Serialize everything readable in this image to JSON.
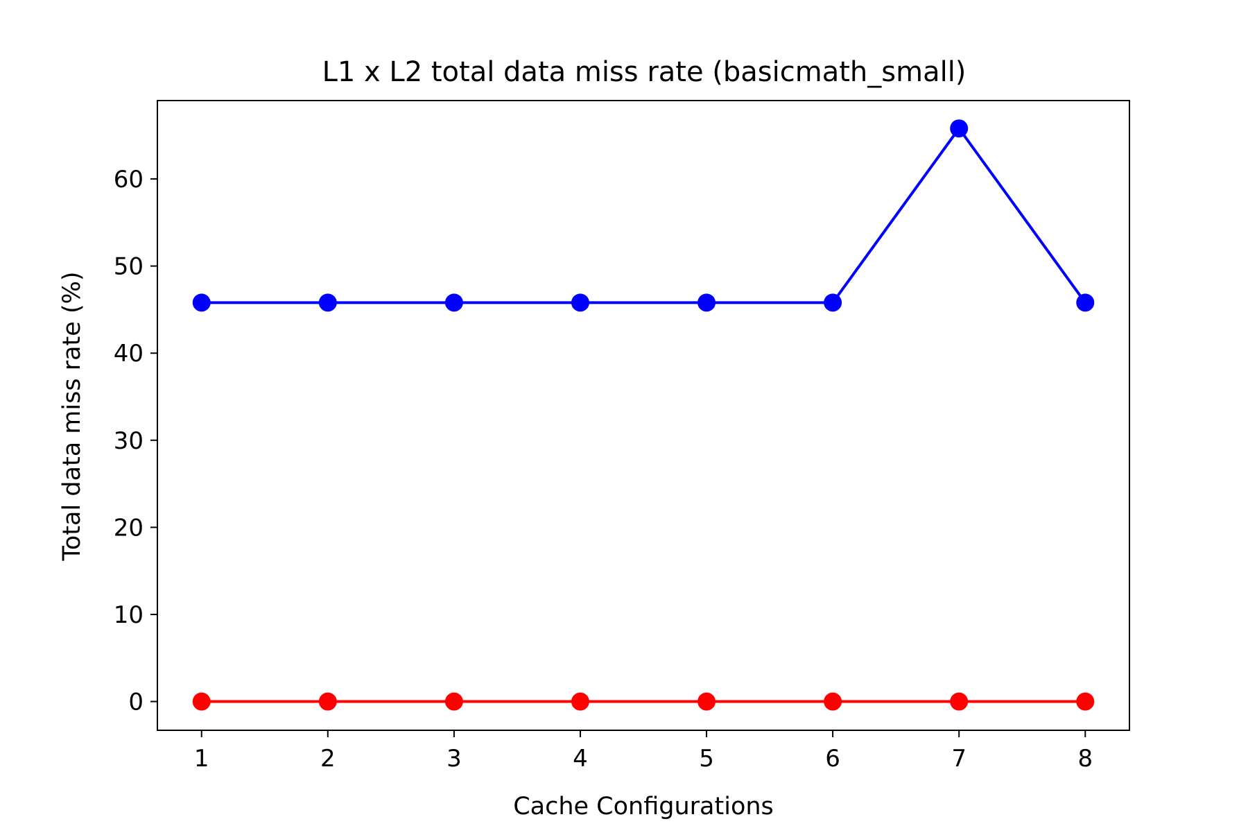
{
  "chart_data": {
    "type": "line",
    "title": "L1 x L2 total data miss rate (basicmath_small)",
    "xlabel": "Cache Configurations",
    "ylabel": "Total data miss rate (%)",
    "x": [
      1,
      2,
      3,
      4,
      5,
      6,
      7,
      8
    ],
    "xlim": [
      0.65,
      8.35
    ],
    "ylim": [
      -3.3,
      69
    ],
    "xticks": [
      1,
      2,
      3,
      4,
      5,
      6,
      7,
      8
    ],
    "yticks": [
      0,
      10,
      20,
      30,
      40,
      50,
      60
    ],
    "grid": false,
    "legend": "none",
    "series": [
      {
        "color": "#0000ff",
        "values": [
          45.8,
          45.8,
          45.8,
          45.8,
          45.8,
          45.8,
          65.8,
          45.8
        ]
      },
      {
        "color": "#ff0000",
        "values": [
          0,
          0,
          0,
          0,
          0,
          0,
          0,
          0
        ]
      }
    ]
  }
}
